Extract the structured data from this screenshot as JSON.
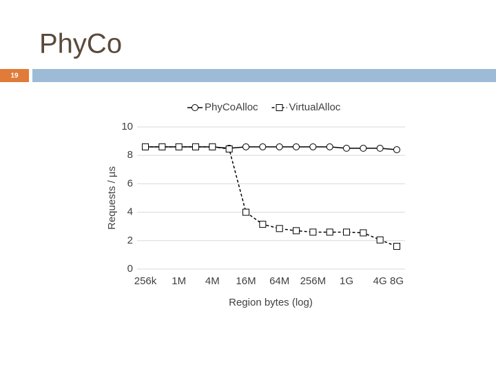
{
  "slide": {
    "title": "PhyCo",
    "number": "19"
  },
  "chart_data": {
    "type": "line",
    "ylabel": "Requests / µs",
    "xlabel": "Region bytes (log)",
    "categories": [
      "256k",
      null,
      "1M",
      null,
      "4M",
      null,
      "16M",
      null,
      "64M",
      null,
      "256M",
      null,
      "1G",
      null,
      "4G",
      "8G"
    ],
    "series": [
      {
        "name": "PhyCoAlloc",
        "color": "#000000",
        "dash": false,
        "marker": "circle",
        "values": [
          8.6,
          8.6,
          8.6,
          8.6,
          8.6,
          8.5,
          8.6,
          8.6,
          8.6,
          8.6,
          8.6,
          8.6,
          8.5,
          8.5,
          8.5,
          8.4
        ]
      },
      {
        "name": "VirtualAlloc",
        "color": "#000000",
        "dash": true,
        "marker": "square",
        "values": [
          8.6,
          8.6,
          8.6,
          8.6,
          8.6,
          8.45,
          4.0,
          3.15,
          2.85,
          2.7,
          2.6,
          2.6,
          2.6,
          2.55,
          2.05,
          1.6
        ]
      }
    ],
    "ylim": [
      0,
      10
    ],
    "yticks": [
      0,
      2,
      4,
      6,
      8,
      10
    ],
    "grid": true,
    "legend": "top"
  }
}
